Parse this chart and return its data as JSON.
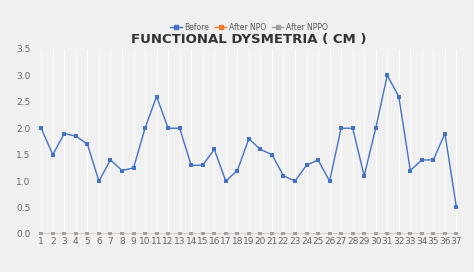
{
  "title": "FUNCTIONAL DYSMETRIA ( CM )",
  "x_labels": [
    1,
    2,
    3,
    4,
    5,
    6,
    7,
    8,
    9,
    10,
    11,
    12,
    13,
    14,
    15,
    16,
    17,
    18,
    19,
    20,
    21,
    22,
    23,
    24,
    25,
    26,
    27,
    28,
    29,
    30,
    31,
    32,
    33,
    34,
    35,
    36,
    37
  ],
  "before": [
    2.0,
    1.5,
    1.9,
    1.85,
    1.7,
    1.0,
    1.4,
    1.2,
    1.25,
    2.0,
    2.6,
    2.0,
    2.0,
    1.3,
    1.3,
    1.6,
    1.0,
    1.2,
    1.8,
    1.6,
    1.5,
    1.1,
    1.0,
    1.3,
    1.4,
    1.0,
    2.0,
    2.0,
    1.1,
    2.0,
    3.0,
    2.6,
    1.2,
    1.4,
    1.4,
    1.9,
    0.5
  ],
  "after_npo": [
    0,
    0,
    0,
    0,
    0,
    0,
    0,
    0,
    0,
    0,
    0,
    0,
    0,
    0,
    0,
    0,
    0,
    0,
    0,
    0,
    0,
    0,
    0,
    0,
    0,
    0,
    0,
    0,
    0,
    0,
    0,
    0,
    0,
    0,
    0,
    0,
    0
  ],
  "after_nppo": [
    0,
    0,
    0,
    0,
    0,
    0,
    0,
    0,
    0,
    0,
    0,
    0,
    0,
    0,
    0,
    0,
    0,
    0,
    0,
    0,
    0,
    0,
    0,
    0,
    0,
    0,
    0,
    0,
    0,
    0,
    0,
    0,
    0,
    0,
    0,
    0,
    0
  ],
  "before_color": "#4472c4",
  "after_npo_color": "#ed7d31",
  "after_nppo_color": "#a0a0a0",
  "bg_color": "#f0f0f0",
  "plot_bg_color": "#f0f0f0",
  "ylim": [
    0,
    3.5
  ],
  "yticks": [
    0.0,
    0.5,
    1.0,
    1.5,
    2.0,
    2.5,
    3.0,
    3.5
  ],
  "legend_labels": [
    "Before",
    "After NPO",
    "After NPPO"
  ],
  "title_fontsize": 9.5,
  "tick_fontsize": 6.5
}
